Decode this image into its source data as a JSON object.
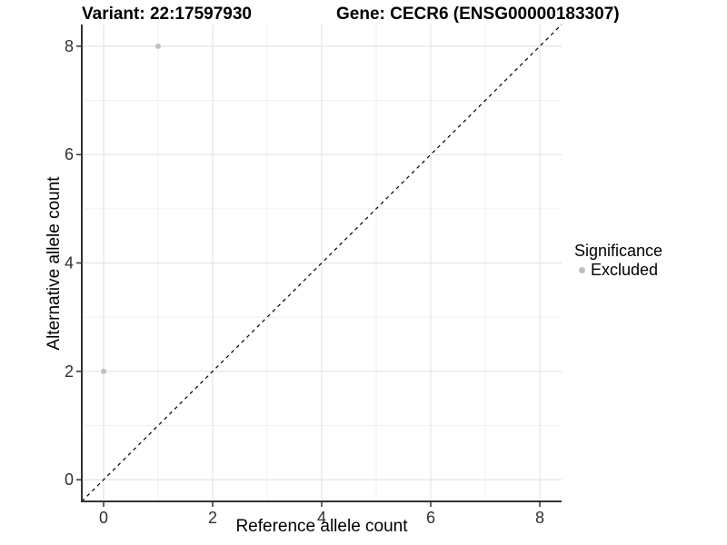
{
  "chart_data": {
    "type": "scatter",
    "title_left": "Variant: 22:17597930",
    "title_right": "Gene: CECR6 (ENSG00000183307)",
    "xlabel": "Reference allele count",
    "ylabel": "Alternative allele count",
    "xlim": [
      -0.4,
      8.4
    ],
    "ylim": [
      -0.4,
      8.4
    ],
    "xticks": [
      0,
      2,
      4,
      6,
      8
    ],
    "yticks": [
      0,
      2,
      4,
      6,
      8
    ],
    "minor_xticks": [
      1,
      3,
      5,
      7
    ],
    "minor_yticks": [
      1,
      3,
      5,
      7
    ],
    "grid": "on",
    "reference_line": {
      "type": "identity-diagonal",
      "style": "dashed",
      "color": "#000000"
    },
    "series": [
      {
        "name": "Excluded",
        "color": "#bebebe",
        "points": [
          {
            "x": 0,
            "y": 2
          },
          {
            "x": 1,
            "y": 8
          }
        ]
      }
    ],
    "legend": {
      "position": "right",
      "title": "Significance",
      "entries": [
        {
          "label": "Excluded",
          "color": "#bebebe"
        }
      ]
    }
  },
  "colors": {
    "background": "#ffffff",
    "axis_line": "#333333",
    "tick_mark": "#333333",
    "tick_label": "#303030",
    "grid_major": "#e4e4e4",
    "grid_minor": "#f0f0f0",
    "point": "#bebebe",
    "dashed_line": "#000000"
  }
}
